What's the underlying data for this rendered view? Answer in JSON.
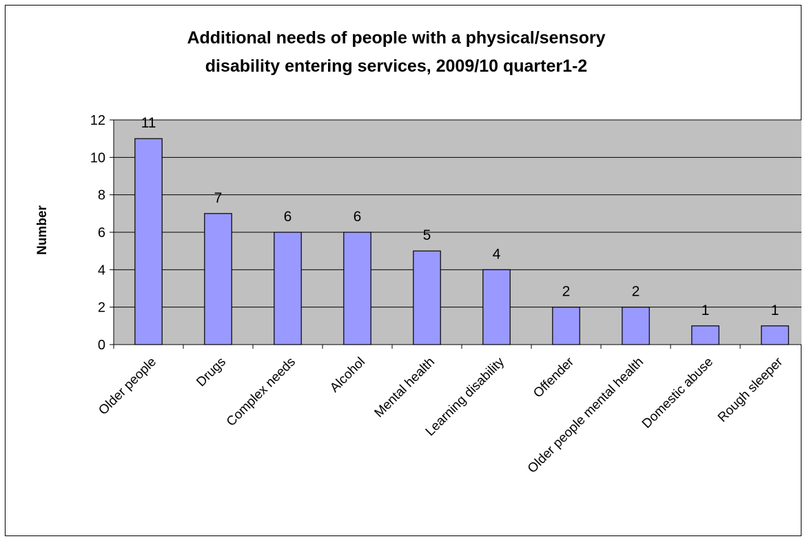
{
  "chart_data": {
    "type": "bar",
    "title_lines": [
      "Additional needs of people with a physical/sensory",
      "disability entering services, 2009/10 quarter1-2"
    ],
    "xlabel": "",
    "ylabel": "Number",
    "categories": [
      "Older people",
      "Drugs",
      "Complex needs",
      "Alcohol",
      "Mental health",
      "Learning disability",
      "Offender",
      "Older people mental health",
      "Domestic abuse",
      "Rough sleeper"
    ],
    "values": [
      11,
      7,
      6,
      6,
      5,
      4,
      2,
      2,
      1,
      1
    ],
    "data_labels": [
      "11",
      "7",
      "6",
      "6",
      "5",
      "4",
      "2",
      "2",
      "1",
      "1"
    ],
    "y_ticks": [
      0,
      2,
      4,
      6,
      8,
      10,
      12
    ],
    "ylim": [
      0,
      12
    ],
    "grid": true,
    "legend": "none",
    "colors": {
      "bar_fill": "#9999ff",
      "plot_background": "#c0c0c0",
      "gridline": "#000000"
    }
  }
}
